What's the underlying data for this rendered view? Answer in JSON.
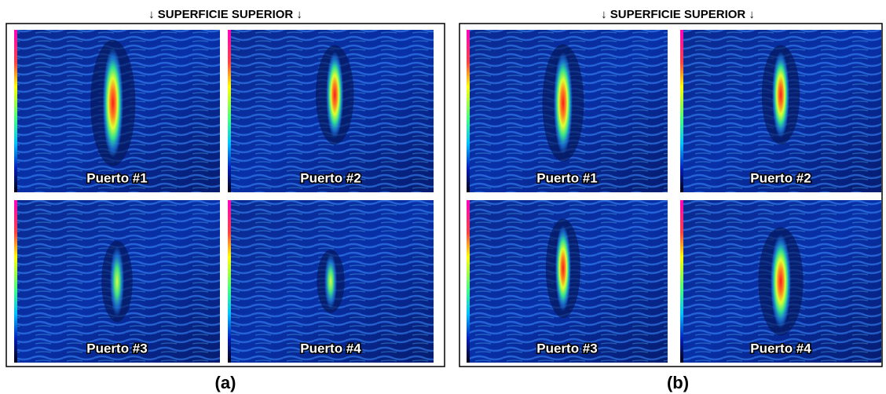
{
  "panels": [
    {
      "title": "↓ SUPERFICIE SUPERIOR ↓",
      "caption": "(a)",
      "images": [
        {
          "label": "Puerto #1"
        },
        {
          "label": "Puerto #2"
        },
        {
          "label": "Puerto #3"
        },
        {
          "label": "Puerto #4"
        }
      ]
    },
    {
      "title": "↓ SUPERFICIE SUPERIOR ↓",
      "caption": "(b)",
      "images": [
        {
          "label": "Puerto #1"
        },
        {
          "label": "Puerto #2"
        },
        {
          "label": "Puerto #3"
        },
        {
          "label": "Puerto #4"
        }
      ]
    }
  ]
}
